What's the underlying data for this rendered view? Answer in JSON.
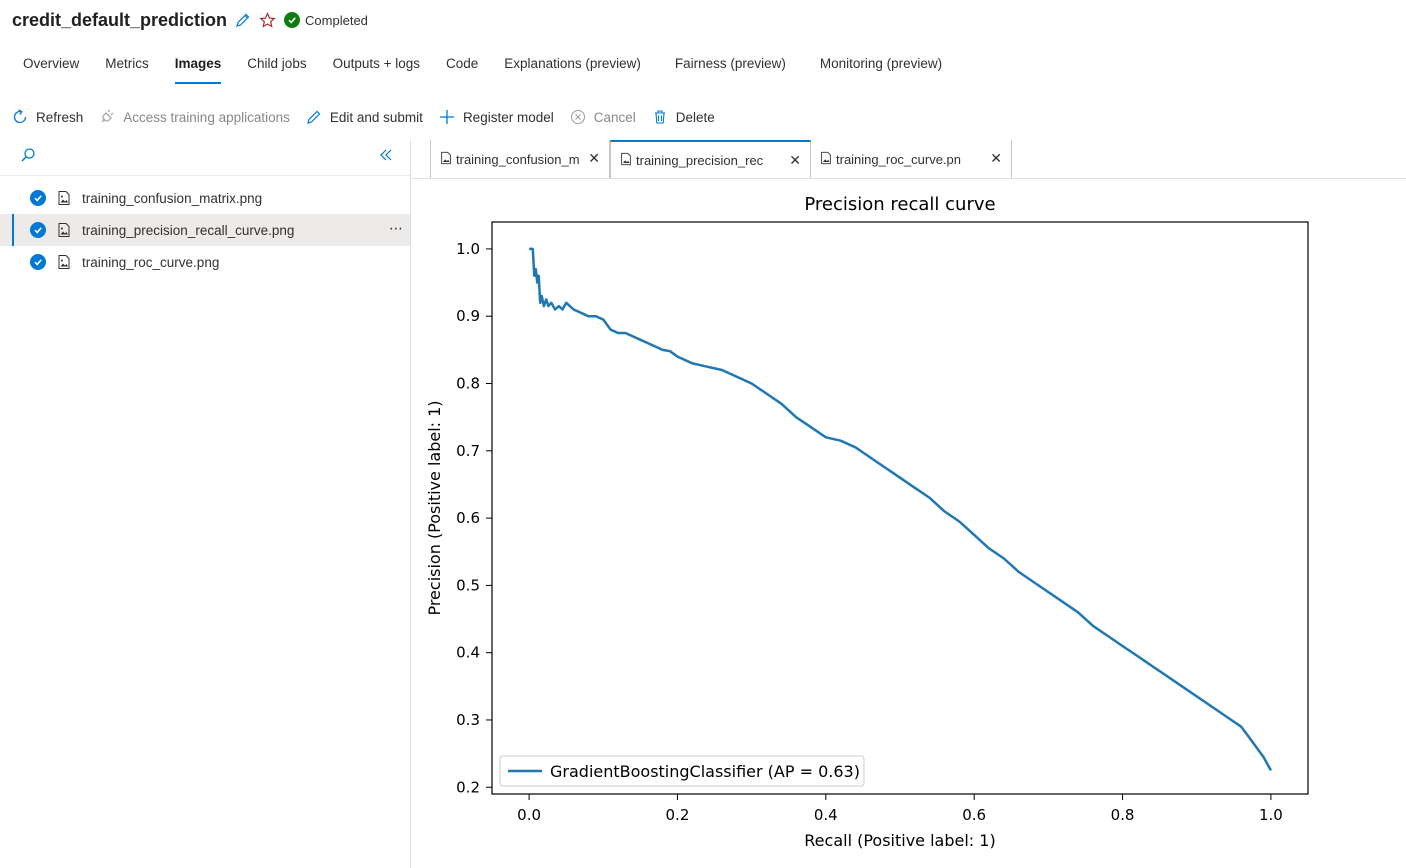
{
  "header": {
    "title": "credit_default_prediction",
    "status": "Completed",
    "status_color": "#107c10"
  },
  "tabs": [
    {
      "label": "Overview"
    },
    {
      "label": "Metrics"
    },
    {
      "label": "Images",
      "active": true
    },
    {
      "label": "Child jobs"
    },
    {
      "label": "Outputs + logs"
    },
    {
      "label": "Code"
    },
    {
      "label": "Explanations (preview)"
    },
    {
      "label": "Fairness (preview)"
    },
    {
      "label": "Monitoring (preview)"
    }
  ],
  "toolbar": {
    "refresh": "Refresh",
    "access": "Access training applications",
    "edit": "Edit and submit",
    "register": "Register model",
    "cancel": "Cancel",
    "delete": "Delete"
  },
  "files": [
    {
      "name": "training_confusion_matrix.png"
    },
    {
      "name": "training_precision_recall_curve.png",
      "selected": true
    },
    {
      "name": "training_roc_curve.png"
    }
  ],
  "image_tabs": [
    {
      "label": "training_confusion_m"
    },
    {
      "label": "training_precision_rec",
      "active": true
    },
    {
      "label": "training_roc_curve.pn"
    }
  ],
  "chart_data": {
    "type": "line",
    "title": "Precision recall curve",
    "xlabel": "Recall (Positive label: 1)",
    "ylabel": "Precision (Positive label: 1)",
    "xlim": [
      -0.05,
      1.05
    ],
    "ylim": [
      0.19,
      1.04
    ],
    "xticks": [
      "0.0",
      "0.2",
      "0.4",
      "0.6",
      "0.8",
      "1.0"
    ],
    "yticks": [
      "0.2",
      "0.3",
      "0.4",
      "0.5",
      "0.6",
      "0.7",
      "0.8",
      "0.9",
      "1.0"
    ],
    "grid": false,
    "legend_position": "lower-left",
    "series": [
      {
        "name": "GradientBoostingClassifier (AP = 0.63)",
        "color": "#1f77b4",
        "x": [
          0.0,
          0.005,
          0.007,
          0.009,
          0.011,
          0.013,
          0.015,
          0.017,
          0.02,
          0.023,
          0.026,
          0.03,
          0.035,
          0.04,
          0.045,
          0.05,
          0.055,
          0.06,
          0.07,
          0.08,
          0.09,
          0.1,
          0.11,
          0.12,
          0.13,
          0.14,
          0.15,
          0.16,
          0.17,
          0.18,
          0.19,
          0.2,
          0.22,
          0.24,
          0.26,
          0.28,
          0.3,
          0.32,
          0.34,
          0.36,
          0.38,
          0.4,
          0.42,
          0.44,
          0.46,
          0.48,
          0.5,
          0.52,
          0.54,
          0.56,
          0.58,
          0.6,
          0.62,
          0.64,
          0.66,
          0.68,
          0.7,
          0.72,
          0.74,
          0.76,
          0.78,
          0.8,
          0.82,
          0.84,
          0.86,
          0.88,
          0.9,
          0.92,
          0.94,
          0.96,
          0.97,
          0.98,
          0.99,
          1.0
        ],
        "y": [
          1.0,
          1.0,
          0.96,
          0.97,
          0.95,
          0.96,
          0.92,
          0.93,
          0.915,
          0.925,
          0.915,
          0.92,
          0.91,
          0.915,
          0.91,
          0.92,
          0.915,
          0.91,
          0.905,
          0.9,
          0.9,
          0.895,
          0.88,
          0.875,
          0.875,
          0.87,
          0.865,
          0.86,
          0.855,
          0.85,
          0.848,
          0.84,
          0.83,
          0.825,
          0.82,
          0.81,
          0.8,
          0.785,
          0.77,
          0.75,
          0.735,
          0.72,
          0.715,
          0.705,
          0.69,
          0.675,
          0.66,
          0.645,
          0.63,
          0.61,
          0.595,
          0.575,
          0.555,
          0.54,
          0.52,
          0.505,
          0.49,
          0.475,
          0.46,
          0.44,
          0.425,
          0.41,
          0.395,
          0.38,
          0.365,
          0.35,
          0.335,
          0.32,
          0.305,
          0.29,
          0.275,
          0.26,
          0.245,
          0.225
        ]
      }
    ]
  }
}
